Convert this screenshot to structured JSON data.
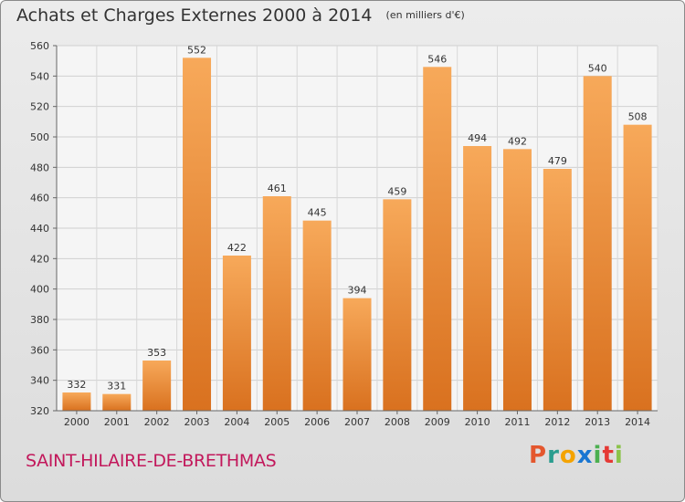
{
  "header": {
    "title": "Achats et Charges Externes 2000 à 2014",
    "subtitle": "(en milliers d'€)"
  },
  "footer": {
    "town": "SAINT-HILAIRE-DE-BRETHMAS",
    "logo_letters": [
      "P",
      "r",
      "o",
      "x",
      "i",
      "t",
      "i"
    ],
    "logo_colors": [
      "#e4572e",
      "#2a9d8f",
      "#f4a300",
      "#1976d2",
      "#4caf50",
      "#e53935",
      "#8bc34a"
    ]
  },
  "chart_data": {
    "type": "bar",
    "title": "Achats et Charges Externes 2000 à 2014",
    "subtitle": "(en milliers d'€)",
    "categories": [
      "2000",
      "2001",
      "2002",
      "2003",
      "2004",
      "2005",
      "2006",
      "2007",
      "2008",
      "2009",
      "2010",
      "2011",
      "2012",
      "2013",
      "2014"
    ],
    "values": [
      332,
      331,
      353,
      552,
      422,
      461,
      445,
      394,
      459,
      546,
      494,
      492,
      479,
      540,
      508
    ],
    "ylim": [
      320,
      560
    ],
    "yticks": [
      320,
      340,
      360,
      380,
      400,
      420,
      440,
      460,
      480,
      500,
      520,
      540,
      560
    ],
    "grid": true,
    "bar_color_light": "#f7a95a",
    "bar_color_dark": "#d9711f"
  }
}
